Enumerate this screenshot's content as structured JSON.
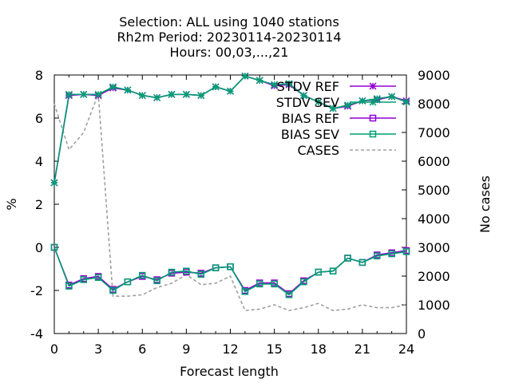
{
  "chart_data": {
    "type": "line",
    "title_lines": [
      "Selection: ALL using  1040 stations",
      "Rh2m   Period: 20230114-20230114",
      "Hours:  00,03,...,21"
    ],
    "xlabel": "Forecast length",
    "ylabel": "%",
    "y2label": "No cases",
    "xlim": [
      0,
      24
    ],
    "ylim": [
      -4,
      8
    ],
    "y2lim": [
      0,
      9000
    ],
    "xticks": [
      "0",
      "3",
      "6",
      "9",
      "12",
      "15",
      "18",
      "21",
      "24"
    ],
    "yticks": [
      "-4",
      "-2",
      "0",
      "2",
      "4",
      "6",
      "8"
    ],
    "y2ticks": [
      "0",
      "1000",
      "2000",
      "3000",
      "4000",
      "5000",
      "6000",
      "7000",
      "8000",
      "9000"
    ],
    "grid": false,
    "legend_position": "top-right",
    "x": [
      0,
      1,
      2,
      3,
      4,
      5,
      6,
      7,
      8,
      9,
      10,
      11,
      12,
      13,
      14,
      15,
      16,
      17,
      18,
      19,
      20,
      21,
      22,
      23,
      24
    ],
    "series": [
      {
        "name": "STDV REF",
        "color": "#9400d3",
        "marker": "x-star",
        "axis": "y",
        "values": [
          3.0,
          7.05,
          7.1,
          7.05,
          7.4,
          7.3,
          7.05,
          6.95,
          7.1,
          7.1,
          7.05,
          7.45,
          7.25,
          7.95,
          7.75,
          7.5,
          7.55,
          7.05,
          6.75,
          6.45,
          6.55,
          6.8,
          6.85,
          7.0,
          6.8
        ]
      },
      {
        "name": "STDV SEV",
        "color": "#009e73",
        "marker": "x-star",
        "axis": "y",
        "values": [
          3.0,
          7.1,
          7.1,
          7.1,
          7.45,
          7.3,
          7.05,
          6.95,
          7.1,
          7.1,
          7.05,
          7.45,
          7.25,
          7.95,
          7.75,
          7.55,
          7.6,
          7.05,
          6.75,
          6.45,
          6.6,
          6.8,
          6.9,
          7.0,
          6.75
        ]
      },
      {
        "name": "BIAS REF",
        "color": "#9400d3",
        "marker": "square",
        "axis": "y",
        "values": [
          0.0,
          -1.75,
          -1.45,
          -1.35,
          -1.95,
          -1.6,
          -1.35,
          -1.5,
          -1.2,
          -1.15,
          -1.2,
          -0.95,
          -0.9,
          -2.0,
          -1.65,
          -1.65,
          -2.15,
          -1.55,
          -1.15,
          -1.1,
          -0.5,
          -0.7,
          -0.35,
          -0.25,
          -0.15
        ]
      },
      {
        "name": "BIAS SEV",
        "color": "#009e73",
        "marker": "square",
        "axis": "y",
        "values": [
          0.0,
          -1.8,
          -1.5,
          -1.4,
          -2.0,
          -1.6,
          -1.3,
          -1.55,
          -1.15,
          -1.1,
          -1.25,
          -0.95,
          -0.9,
          -2.05,
          -1.7,
          -1.7,
          -2.2,
          -1.6,
          -1.15,
          -1.1,
          -0.5,
          -0.7,
          -0.4,
          -0.3,
          -0.2
        ]
      },
      {
        "name": "CASES",
        "color": "#a0a0a0",
        "marker": "none",
        "dashed": true,
        "axis": "y2",
        "values": [
          8000,
          6400,
          7000,
          8350,
          1300,
          1300,
          1350,
          1600,
          1750,
          2050,
          1700,
          1750,
          2000,
          800,
          850,
          1000,
          800,
          900,
          1050,
          800,
          850,
          1000,
          900,
          900,
          1000
        ]
      }
    ]
  }
}
